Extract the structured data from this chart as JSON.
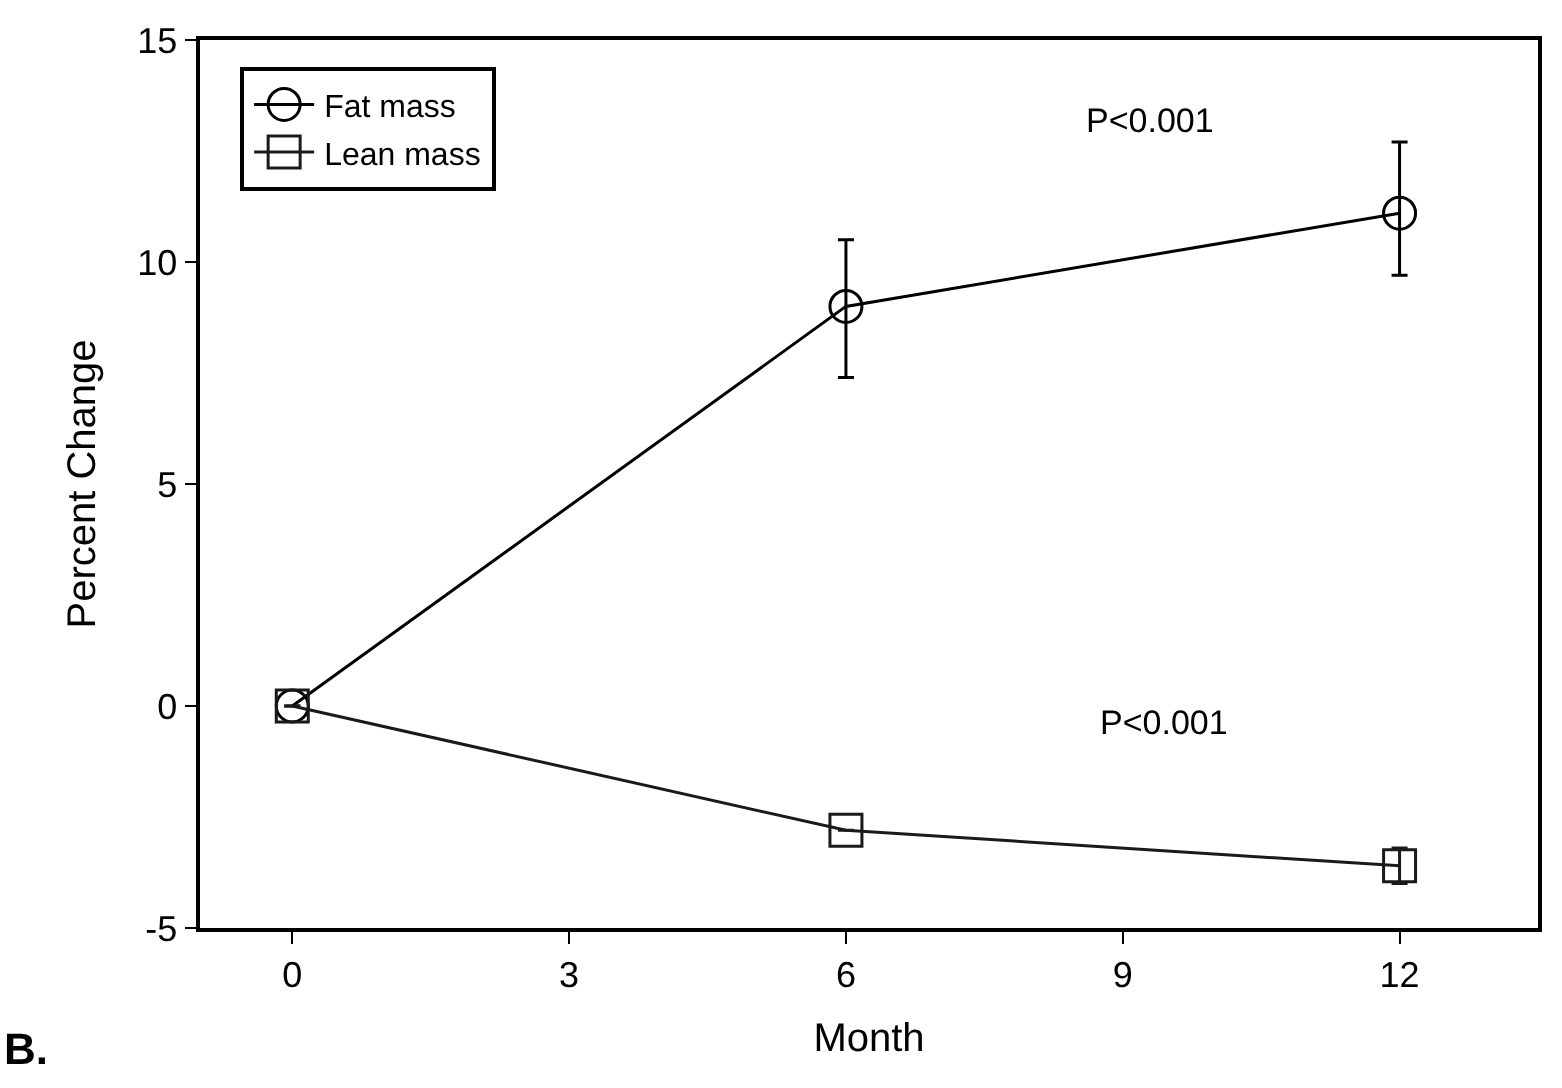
{
  "chart_data": {
    "type": "line",
    "xlabel": "Month",
    "ylabel": "Percent Change",
    "x": [
      0,
      6,
      12
    ],
    "series": [
      {
        "name": "Fat mass",
        "color": "#000000",
        "marker": "circle",
        "values": [
          0,
          9.0,
          11.1
        ],
        "errors": [
          null,
          [
            7.4,
            10.5
          ],
          [
            9.7,
            12.7
          ]
        ]
      },
      {
        "name": "Lean mass",
        "color": "#1a1a1a",
        "marker": "square",
        "values": [
          0,
          -2.8,
          -3.6
        ],
        "errors": [
          null,
          null,
          0.4
        ]
      }
    ],
    "xlim": [
      -1,
      13.5
    ],
    "xticks": [
      0,
      3,
      6,
      9,
      12
    ],
    "ylim": [
      -5,
      15
    ],
    "yticks": [
      -5,
      0,
      5,
      10,
      15
    ],
    "legend": "top left",
    "line_style": "solid",
    "annotations": [
      "P<0.001",
      "P<0.001",
      "B."
    ]
  }
}
